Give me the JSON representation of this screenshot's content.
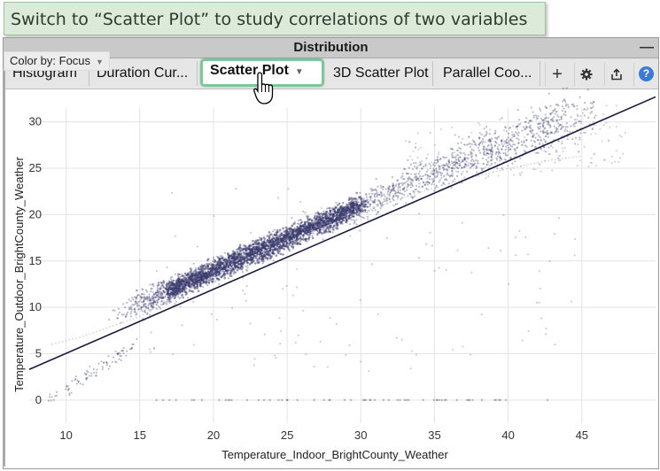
{
  "callout": {
    "text": "Switch to “Scatter Plot” to study correlations of two variables"
  },
  "panel": {
    "title": "Distribution",
    "minimize_glyph": "—",
    "tabs": [
      {
        "label": "Histogram",
        "active": false
      },
      {
        "label": "Duration Cur...",
        "active": false
      },
      {
        "label": "Scatter Plot",
        "active": true
      },
      {
        "label": "3D Scatter Plot",
        "active": false
      },
      {
        "label": "Parallel Coo...",
        "active": false
      }
    ],
    "tools": {
      "add": "+",
      "settings": "gear-icon",
      "export": "export-icon",
      "help": "?"
    }
  },
  "color_by": {
    "label": "Color by: Focus"
  },
  "chart_data": {
    "type": "scatter",
    "xlabel": "Temperature_Indoor_BrightCounty_Weather",
    "ylabel": "Temperature_Outdoor_BrightCounty_Weather",
    "x_ticks": [
      10,
      15,
      20,
      25,
      30,
      35,
      40,
      45
    ],
    "y_ticks": [
      0,
      5,
      10,
      15,
      20,
      25,
      30
    ],
    "xlim": [
      7.5,
      50
    ],
    "ylim": [
      -2.5,
      31.5
    ],
    "grid": true,
    "point_color": "#3b3b6e",
    "regression_line": {
      "x": [
        7.5,
        50
      ],
      "y": [
        3.3,
        32.7
      ],
      "color": "#1a1a3e"
    },
    "density_ridge": [
      [
        9,
        6
      ],
      [
        11,
        6.8
      ],
      [
        13,
        7.9
      ],
      [
        15,
        9
      ],
      [
        17,
        10.8
      ],
      [
        19,
        12.5
      ],
      [
        21,
        14.2
      ],
      [
        23,
        15.8
      ],
      [
        25,
        17
      ],
      [
        27,
        18.3
      ],
      [
        29,
        19.6
      ],
      [
        31,
        20.8
      ],
      [
        33,
        21.9
      ],
      [
        35,
        22.9
      ],
      [
        37,
        23.8
      ],
      [
        39,
        24.6
      ],
      [
        41,
        25.3
      ],
      [
        43,
        25.9
      ],
      [
        45,
        26.3
      ]
    ]
  }
}
